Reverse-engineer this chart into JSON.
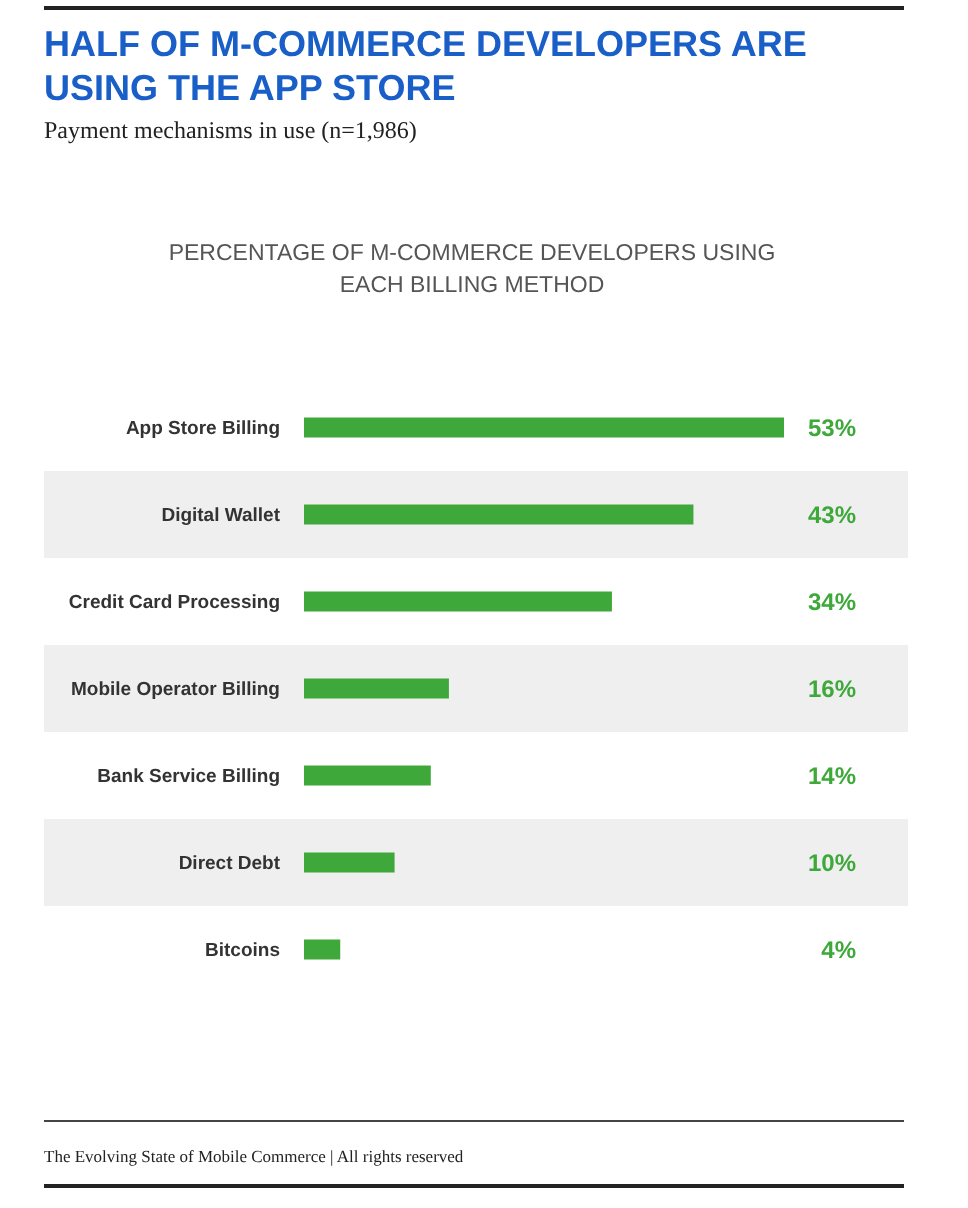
{
  "chart_data": {
    "type": "bar",
    "orientation": "horizontal",
    "title": "HALF OF M-COMMERCE DEVELOPERS ARE USING THE APP STORE",
    "subtitle": "Payment mechanisms in use (n=1,986)",
    "xlabel": "PERCENTAGE OF M-COMMERCE DEVELOPERS USING EACH BILLING METHOD",
    "categories": [
      "App Store Billing",
      "Digital Wallet",
      "Credit Card Processing",
      "Mobile Operator Billing",
      "Bank Service Billing",
      "Direct Debt",
      "Bitcoins"
    ],
    "values": [
      53,
      43,
      34,
      16,
      14,
      10,
      4
    ],
    "value_labels": [
      "53%",
      "43%",
      "34%",
      "16%",
      "14%",
      "10%",
      "4%"
    ],
    "color": "#3ea83a",
    "annotations": [
      "The Evolving State of Mobile Commerce | All rights reserved"
    ]
  }
}
